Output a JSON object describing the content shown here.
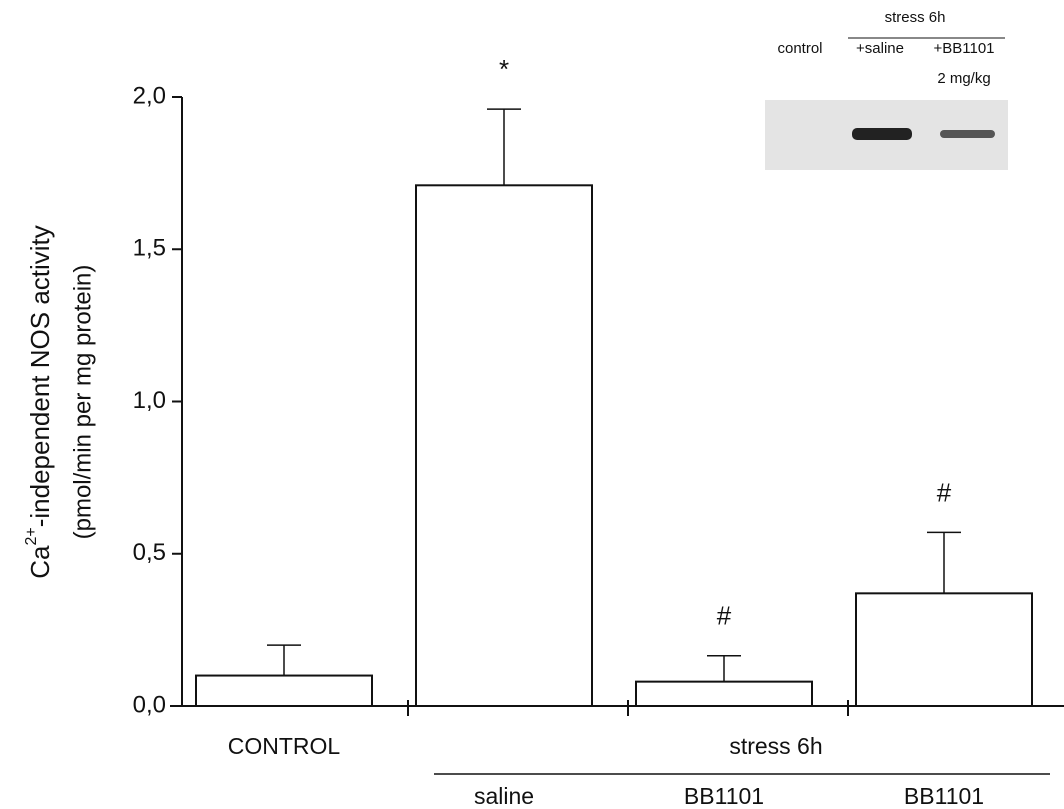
{
  "chart_data": {
    "type": "bar",
    "y_label": {
      "prefix": "Ca",
      "sup": "2+",
      "rest": "-independent NOS activity",
      "line2": "(pmol/min per mg protein)"
    },
    "categories": [
      "CONTROL",
      "saline",
      "BB1101",
      "BB1101"
    ],
    "group_label": "stress 6h",
    "values": [
      0.1,
      1.71,
      0.08,
      0.37
    ],
    "errors": [
      0.1,
      0.25,
      0.085,
      0.2
    ],
    "value_annotations": [
      null,
      "*",
      "#",
      "#"
    ],
    "color": "#ffffff",
    "ylim": [
      0,
      2.0
    ],
    "yticks": [
      {
        "value": 0,
        "label": "0,0"
      },
      {
        "value": 0.5,
        "label": "0,5"
      },
      {
        "value": 1.0,
        "label": "1,0"
      },
      {
        "value": 1.5,
        "label": "1,5"
      },
      {
        "value": 2.0,
        "label": "2,0"
      }
    ],
    "inset": {
      "group": "stress 6h",
      "lanes": [
        "control",
        "+saline",
        "+BB1101"
      ],
      "dose": "2 mg/kg"
    }
  }
}
